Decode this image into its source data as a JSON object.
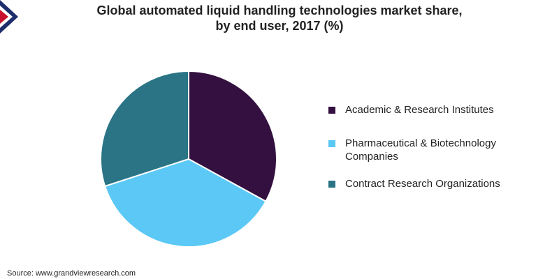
{
  "chart_data": {
    "type": "pie",
    "title": "Global automated liquid handling technologies market share,",
    "subtitle": "by end user, 2017 (%)",
    "categories": [
      "Academic & Research Institutes",
      "Pharmaceutical & Biotechnology Companies",
      "Contract Research Organizations"
    ],
    "values": [
      33,
      37,
      30
    ],
    "colors": [
      "#33103f",
      "#5bc8f5",
      "#2b7486"
    ],
    "legend_position": "right",
    "legend_labels": [
      [
        "Academic & Research Institutes"
      ],
      [
        "Pharmaceutical & Biotechnology",
        "Companies"
      ],
      [
        "Contract Research Organizations"
      ]
    ]
  },
  "source": "Source: www.grandviewresearch.com",
  "logo": {
    "colors": [
      "#1e2d6b",
      "#c8102e"
    ]
  }
}
